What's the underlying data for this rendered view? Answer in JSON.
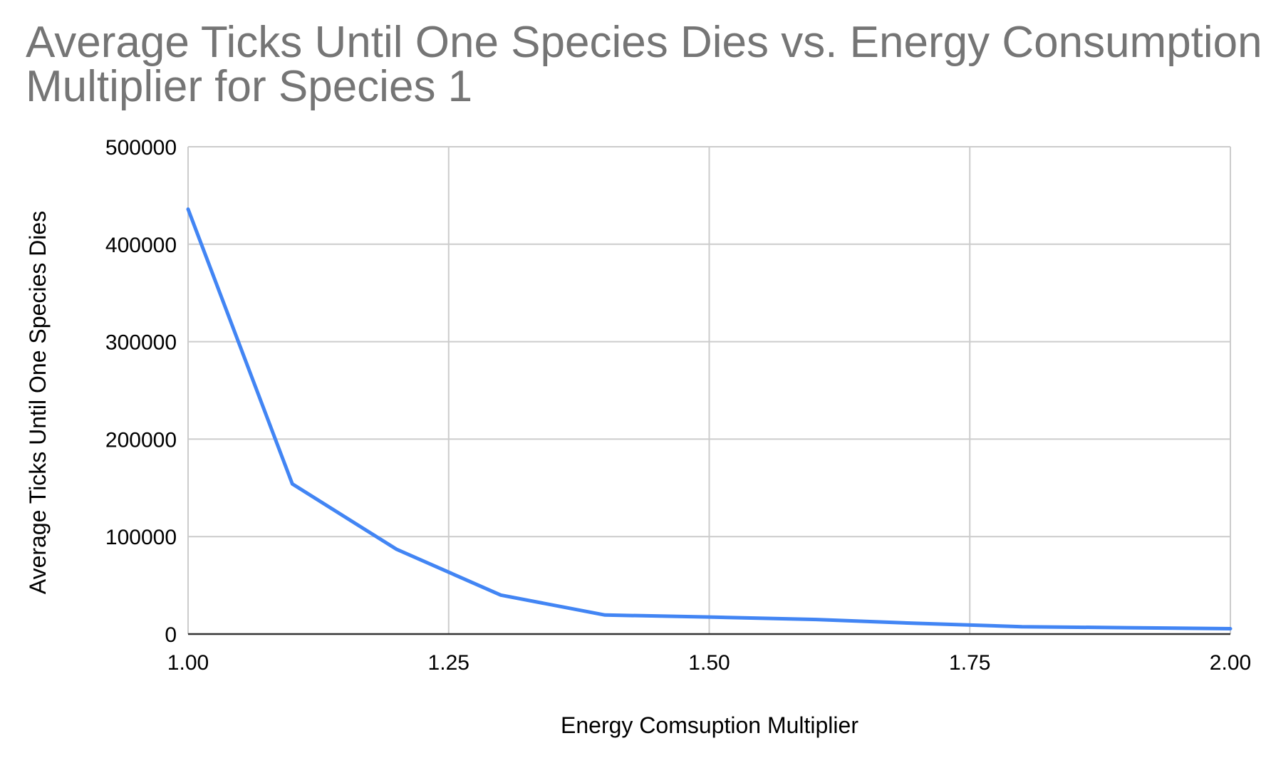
{
  "chart_data": {
    "type": "line",
    "title": "Average Ticks Until One Species Dies vs. Energy Consumption Multiplier for Species 1",
    "title_lines": [
      "Average Ticks Until One Species Dies vs. Energy Consumption",
      "Multiplier for Species 1"
    ],
    "xlabel": "Energy Comsuption Multiplier",
    "ylabel": "Average Ticks Until One Species Dies",
    "xlim": [
      1.0,
      2.0
    ],
    "ylim": [
      0,
      500000
    ],
    "x_ticks": [
      1.0,
      1.25,
      1.5,
      1.75,
      2.0
    ],
    "x_tick_labels": [
      "1.00",
      "1.25",
      "1.50",
      "1.75",
      "2.00"
    ],
    "y_ticks": [
      0,
      100000,
      200000,
      300000,
      400000,
      500000
    ],
    "y_tick_labels": [
      "0",
      "100000",
      "200000",
      "300000",
      "400000",
      "500000"
    ],
    "grid": true,
    "legend": "none",
    "series": [
      {
        "color": "#4285f4",
        "x": [
          1.0,
          1.1,
          1.2,
          1.3,
          1.4,
          1.5,
          1.6,
          1.7,
          1.8,
          1.9,
          2.0
        ],
        "y": [
          436000,
          154000,
          87000,
          40000,
          19500,
          17500,
          15000,
          11000,
          7500,
          6500,
          5500
        ]
      }
    ]
  },
  "colors": {
    "title": "#757575",
    "grid": "#cccccc",
    "series": "#4285f4"
  }
}
